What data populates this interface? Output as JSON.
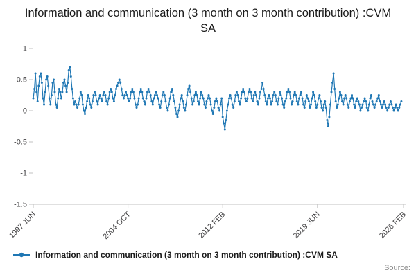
{
  "accent_color": "#1f77b4",
  "axis_color": "#c2c2c2",
  "tick_label_color": "#414042",
  "source_label": "Source:",
  "legend": {
    "label": "Information and communication (3 month on 3 month contribution) :CVM SA"
  },
  "chart_data": {
    "type": "line",
    "title": "Information and communication (3 month on 3 month contribution) :CVM SA",
    "xlabel": "",
    "ylabel": "",
    "grid": false,
    "legend_position": "bottom",
    "marker": "dot",
    "frequency": "monthly",
    "x_start": "1997 JUN",
    "x_tick_labels": [
      "1997 JUN",
      "2004 OCT",
      "2012 FEB",
      "2019 JUN",
      "2026 FEB"
    ],
    "x_tick_positions": [
      0,
      88,
      176,
      264,
      344
    ],
    "x_range": [
      0,
      344
    ],
    "y_ticks": [
      1,
      0.5,
      0,
      -0.5,
      -1,
      -1.5
    ],
    "ylim": [
      -1.5,
      1
    ],
    "series": [
      {
        "name": "Information and communication (3 month on 3 month contribution) :CVM SA",
        "values": [
          0.2,
          0.35,
          0.6,
          0.3,
          0.15,
          0.4,
          0.55,
          0.6,
          0.45,
          0.2,
          0.1,
          0.3,
          0.5,
          0.55,
          0.4,
          0.2,
          0.1,
          0.25,
          0.45,
          0.5,
          0.3,
          0.1,
          0.05,
          0.2,
          0.35,
          0.3,
          0.2,
          0.3,
          0.45,
          0.5,
          0.4,
          0.3,
          0.45,
          0.65,
          0.7,
          0.55,
          0.35,
          0.2,
          0.1,
          0.15,
          0.1,
          0.05,
          0.1,
          0.2,
          0.3,
          0.25,
          0.1,
          0,
          -0.05,
          0.05,
          0.15,
          0.25,
          0.2,
          0.1,
          0.05,
          0.15,
          0.25,
          0.3,
          0.25,
          0.15,
          0.1,
          0.2,
          0.25,
          0.2,
          0.15,
          0.25,
          0.3,
          0.25,
          0.15,
          0.1,
          0.2,
          0.3,
          0.35,
          0.3,
          0.2,
          0.15,
          0.25,
          0.35,
          0.4,
          0.45,
          0.5,
          0.45,
          0.35,
          0.25,
          0.2,
          0.25,
          0.3,
          0.25,
          0.2,
          0.15,
          0.2,
          0.3,
          0.35,
          0.3,
          0.2,
          0.1,
          0.05,
          0.1,
          0.2,
          0.3,
          0.35,
          0.3,
          0.2,
          0.15,
          0.1,
          0.2,
          0.3,
          0.35,
          0.3,
          0.25,
          0.15,
          0.1,
          0.2,
          0.25,
          0.3,
          0.25,
          0.2,
          0.1,
          0.05,
          0.15,
          0.25,
          0.3,
          0.25,
          0.15,
          0.05,
          0,
          0.1,
          0.2,
          0.3,
          0.35,
          0.25,
          0.15,
          0.05,
          -0.05,
          -0.1,
          0,
          0.1,
          0.2,
          0.25,
          0.15,
          0.05,
          0,
          0.1,
          0.25,
          0.35,
          0.4,
          0.3,
          0.2,
          0.1,
          0.15,
          0.25,
          0.3,
          0.25,
          0.15,
          0.1,
          0.2,
          0.3,
          0.25,
          0.2,
          0.1,
          0.05,
          0.15,
          0.2,
          0.25,
          0.2,
          0.1,
          0,
          -0.05,
          0.05,
          0.15,
          0.2,
          0.15,
          0.05,
          0,
          0.1,
          0.2,
          -0.1,
          -0.2,
          -0.3,
          -0.15,
          0,
          0.1,
          0.2,
          0.25,
          0.2,
          0.1,
          0.05,
          0.15,
          0.25,
          0.3,
          0.25,
          0.15,
          0.1,
          0.2,
          0.3,
          0.35,
          0.3,
          0.2,
          0.15,
          0.2,
          0.3,
          0.35,
          0.3,
          0.2,
          0.15,
          0.25,
          0.3,
          0.25,
          0.15,
          0.1,
          0.2,
          0.3,
          0.35,
          0.45,
          0.35,
          0.25,
          0.15,
          0.1,
          0.2,
          0.25,
          0.2,
          0.1,
          0.15,
          0.25,
          0.3,
          0.25,
          0.15,
          0.1,
          0.2,
          0.3,
          0.25,
          0.2,
          0.1,
          0.05,
          0.15,
          0.2,
          0.3,
          0.35,
          0.3,
          0.2,
          0.1,
          0.15,
          0.25,
          0.3,
          0.25,
          0.15,
          0.1,
          0.2,
          0.25,
          0.3,
          0.2,
          0.1,
          0.05,
          0.15,
          0.25,
          0.2,
          0.15,
          0.05,
          0.1,
          0.2,
          0.3,
          0.25,
          0.15,
          0.05,
          0.1,
          0.2,
          0.25,
          0.15,
          0.05,
          0,
          0.1,
          0.15,
          0.05,
          -0.15,
          -0.25,
          -0.1,
          0.1,
          0.3,
          0.45,
          0.6,
          0.35,
          0.15,
          0.05,
          0.1,
          0.2,
          0.3,
          0.25,
          0.15,
          0.1,
          0.2,
          0.25,
          0.2,
          0.1,
          0.05,
          0.15,
          0.2,
          0.25,
          0.2,
          0.1,
          0.05,
          0.15,
          0.2,
          0.15,
          0.1,
          0,
          0.05,
          0.1,
          0.15,
          0.2,
          0.15,
          0.05,
          0,
          0.1,
          0.2,
          0.25,
          0.15,
          0.1,
          0.05,
          0.1,
          0.15,
          0.2,
          0.25,
          0.15,
          0.1,
          0.05,
          0.1,
          0.15,
          0.1,
          0.05,
          0,
          0.05,
          0.1,
          0.15,
          0.1,
          0.05,
          0,
          0.05,
          0.1,
          0.05,
          0,
          0.05,
          0.1,
          0.15
        ]
      }
    ]
  }
}
